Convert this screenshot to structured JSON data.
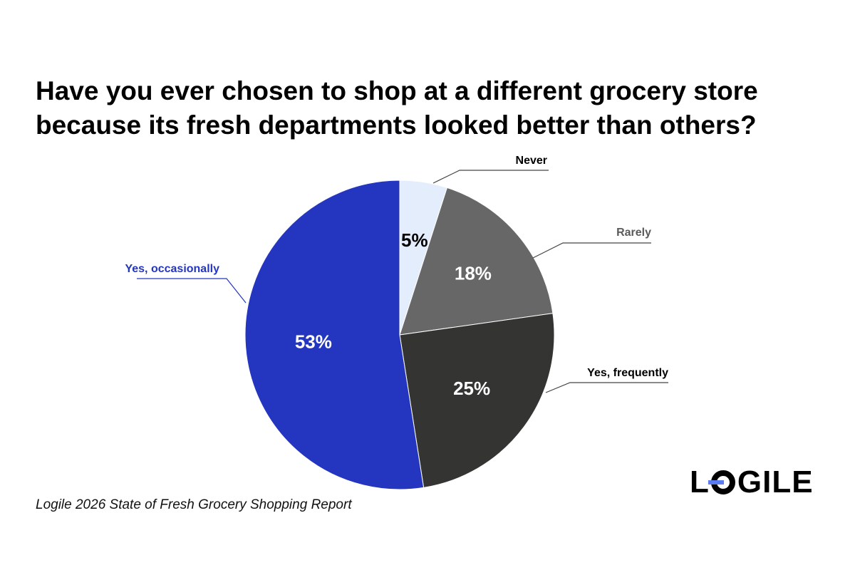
{
  "title": "Have you ever chosen to shop at a different grocery store because its fresh departments looked better than others?",
  "source": "Logile 2026 State of Fresh Grocery Shopping Report",
  "logo": {
    "text_before": "L",
    "text_after": "GILE",
    "mark_color": "#5b7cf0",
    "icon": "logile-o-mark-icon"
  },
  "chart_data": {
    "type": "pie",
    "title": "Have you ever chosen to shop at a different grocery store because its fresh departments looked better than others?",
    "start_angle": "12 o'clock",
    "direction": "clockwise",
    "slices": [
      {
        "label": "Never",
        "value": 5,
        "value_label": "5%",
        "color": "#e4edfb",
        "value_text_color": "#000000",
        "label_color": "#000000"
      },
      {
        "label": "Rarely",
        "value": 18,
        "value_label": "18%",
        "color": "#676767",
        "value_text_color": "#ffffff",
        "label_color": "#5a5a5a"
      },
      {
        "label": "Yes, frequently",
        "value": 25,
        "value_label": "25%",
        "color": "#343532",
        "value_text_color": "#ffffff",
        "label_color": "#000000"
      },
      {
        "label": "Yes, occasionally",
        "value": 53,
        "value_label": "53%",
        "color": "#2436bf",
        "value_text_color": "#ffffff",
        "label_color": "#2436bf"
      }
    ]
  }
}
